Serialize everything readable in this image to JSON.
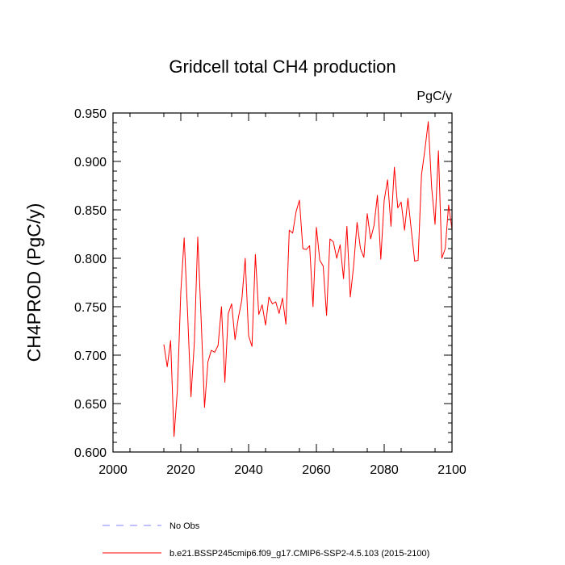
{
  "chart_data": {
    "type": "line",
    "title": "Gridcell total CH4 production",
    "units": "PgC/y",
    "ylabel": "CH4PROD  (PgC/y)",
    "xlabel": "",
    "xlim": [
      2000,
      2100
    ],
    "ylim": [
      0.6,
      0.95
    ],
    "xticks": [
      2000,
      2020,
      2040,
      2060,
      2080,
      2100
    ],
    "xtick_labels": [
      "2000",
      "2020",
      "2040",
      "2060",
      "2080",
      "2100"
    ],
    "yticks": [
      0.6,
      0.65,
      0.7,
      0.75,
      0.8,
      0.85,
      0.9,
      0.95
    ],
    "ytick_labels": [
      "0.600",
      "0.650",
      "0.700",
      "0.750",
      "0.800",
      "0.850",
      "0.900",
      "0.950"
    ],
    "series": [
      {
        "name": "b.e21.BSSP245cmip6.f09_g17.CMIP6-SSP2-4.5.103 (2015-2100)",
        "color": "#ff0000",
        "style": "solid",
        "x": [
          2015,
          2016,
          2017,
          2018,
          2019,
          2020,
          2021,
          2022,
          2023,
          2024,
          2025,
          2026,
          2027,
          2028,
          2029,
          2030,
          2031,
          2032,
          2033,
          2034,
          2035,
          2036,
          2037,
          2038,
          2039,
          2040,
          2041,
          2042,
          2043,
          2044,
          2045,
          2046,
          2047,
          2048,
          2049,
          2050,
          2051,
          2052,
          2053,
          2054,
          2055,
          2056,
          2057,
          2058,
          2059,
          2060,
          2061,
          2062,
          2063,
          2064,
          2065,
          2066,
          2067,
          2068,
          2069,
          2070,
          2071,
          2072,
          2073,
          2074,
          2075,
          2076,
          2077,
          2078,
          2079,
          2080,
          2081,
          2082,
          2083,
          2084,
          2085,
          2086,
          2087,
          2088,
          2089,
          2090,
          2091,
          2092,
          2093,
          2094,
          2095,
          2096,
          2097,
          2098,
          2099,
          2100
        ],
        "values": [
          0.711,
          0.688,
          0.715,
          0.616,
          0.664,
          0.765,
          0.821,
          0.744,
          0.657,
          0.713,
          0.822,
          0.737,
          0.646,
          0.693,
          0.705,
          0.703,
          0.71,
          0.75,
          0.672,
          0.743,
          0.753,
          0.716,
          0.739,
          0.757,
          0.8,
          0.72,
          0.709,
          0.804,
          0.742,
          0.752,
          0.731,
          0.76,
          0.753,
          0.755,
          0.743,
          0.759,
          0.732,
          0.829,
          0.826,
          0.848,
          0.86,
          0.81,
          0.809,
          0.813,
          0.75,
          0.832,
          0.798,
          0.792,
          0.741,
          0.82,
          0.817,
          0.8,
          0.814,
          0.779,
          0.833,
          0.76,
          0.793,
          0.837,
          0.81,
          0.801,
          0.846,
          0.82,
          0.834,
          0.865,
          0.799,
          0.86,
          0.881,
          0.833,
          0.894,
          0.852,
          0.858,
          0.829,
          0.862,
          0.829,
          0.797,
          0.798,
          0.886,
          0.912,
          0.941,
          0.873,
          0.835,
          0.911,
          0.8,
          0.81,
          0.855,
          0.83
        ]
      }
    ],
    "legend": [
      {
        "label": "No Obs",
        "color": "#8080ff",
        "style": "dashed"
      },
      {
        "label": "b.e21.BSSP245cmip6.f09_g17.CMIP6-SSP2-4.5.103 (2015-2100)",
        "color": "#ff0000",
        "style": "solid"
      }
    ]
  }
}
